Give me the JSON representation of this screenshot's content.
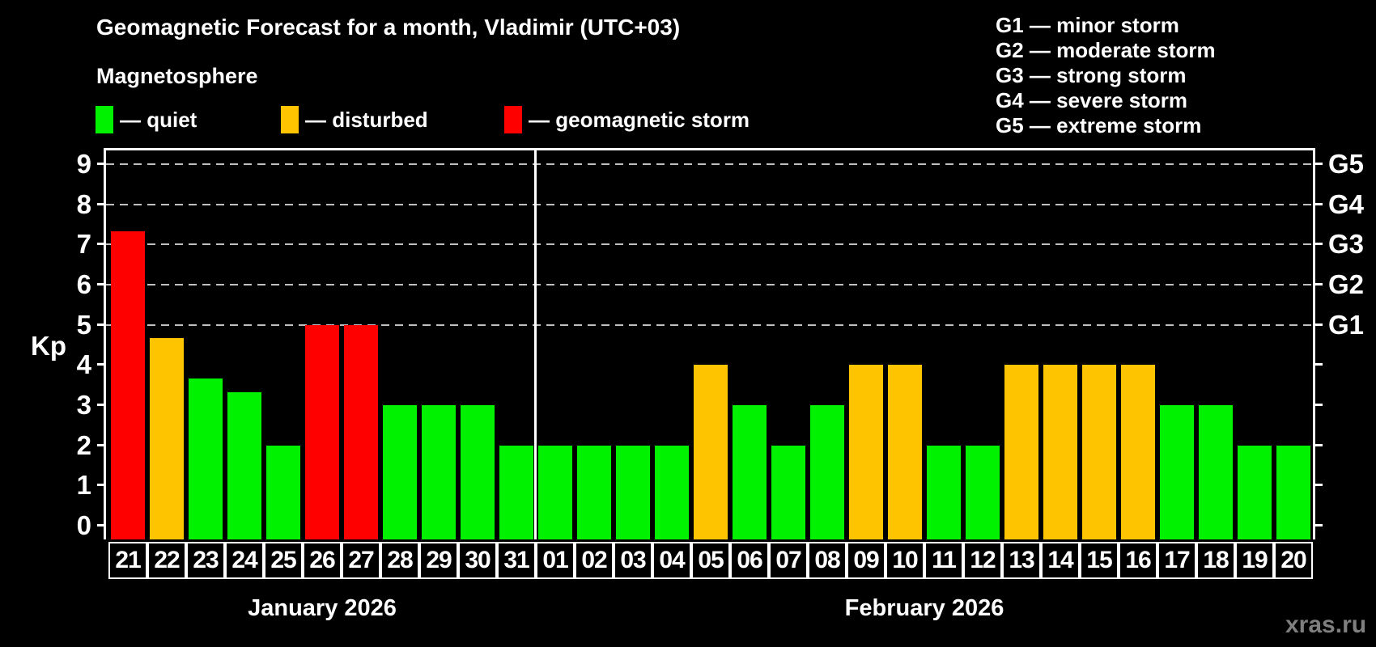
{
  "title": "Geomagnetic Forecast for a month, Vladimir (UTC+03)",
  "subtitle": "Magnetosphere",
  "legend": {
    "items": [
      {
        "label": "— quiet",
        "color": "#00f200",
        "status": "quiet"
      },
      {
        "label": "— disturbed",
        "color": "#ffc400",
        "status": "disturbed"
      },
      {
        "label": "— geomagnetic storm",
        "color": "#ff0000",
        "status": "storm"
      }
    ]
  },
  "g_scale": {
    "items": [
      "G1 — minor storm",
      "G2 — moderate storm",
      "G3 — strong storm",
      "G4 — severe storm",
      "G5 — extreme storm"
    ]
  },
  "watermark": "xras.ru",
  "chart_data": {
    "type": "bar",
    "ylabel": "Kp",
    "ylim": [
      0,
      9
    ],
    "yticks": [
      0,
      1,
      2,
      3,
      4,
      5,
      6,
      7,
      8,
      9
    ],
    "gridlines_at": [
      5,
      6,
      7,
      8,
      9
    ],
    "grid_on": true,
    "right_axis": {
      "labels": [
        {
          "kp": 5,
          "text": "G1"
        },
        {
          "kp": 6,
          "text": "G2"
        },
        {
          "kp": 7,
          "text": "G3"
        },
        {
          "kp": 8,
          "text": "G4"
        },
        {
          "kp": 9,
          "text": "G5"
        }
      ]
    },
    "status_colors": {
      "quiet": "#00f200",
      "disturbed": "#ffc400",
      "storm": "#ff0000"
    },
    "months": [
      {
        "label": "January 2026",
        "days": [
          {
            "day": "21",
            "kp": 7.33,
            "status": "storm"
          },
          {
            "day": "22",
            "kp": 4.67,
            "status": "disturbed"
          },
          {
            "day": "23",
            "kp": 3.67,
            "status": "quiet"
          },
          {
            "day": "24",
            "kp": 3.33,
            "status": "quiet"
          },
          {
            "day": "25",
            "kp": 2,
            "status": "quiet"
          },
          {
            "day": "26",
            "kp": 5,
            "status": "storm"
          },
          {
            "day": "27",
            "kp": 5,
            "status": "storm"
          },
          {
            "day": "28",
            "kp": 3,
            "status": "quiet"
          },
          {
            "day": "29",
            "kp": 3,
            "status": "quiet"
          },
          {
            "day": "30",
            "kp": 3,
            "status": "quiet"
          },
          {
            "day": "31",
            "kp": 2,
            "status": "quiet"
          }
        ]
      },
      {
        "label": "February 2026",
        "days": [
          {
            "day": "01",
            "kp": 2,
            "status": "quiet"
          },
          {
            "day": "02",
            "kp": 2,
            "status": "quiet"
          },
          {
            "day": "03",
            "kp": 2,
            "status": "quiet"
          },
          {
            "day": "04",
            "kp": 2,
            "status": "quiet"
          },
          {
            "day": "05",
            "kp": 4,
            "status": "disturbed"
          },
          {
            "day": "06",
            "kp": 3,
            "status": "quiet"
          },
          {
            "day": "07",
            "kp": 2,
            "status": "quiet"
          },
          {
            "day": "08",
            "kp": 3,
            "status": "quiet"
          },
          {
            "day": "09",
            "kp": 4,
            "status": "disturbed"
          },
          {
            "day": "10",
            "kp": 4,
            "status": "disturbed"
          },
          {
            "day": "11",
            "kp": 2,
            "status": "quiet"
          },
          {
            "day": "12",
            "kp": 2,
            "status": "quiet"
          },
          {
            "day": "13",
            "kp": 4,
            "status": "disturbed"
          },
          {
            "day": "14",
            "kp": 4,
            "status": "disturbed"
          },
          {
            "day": "15",
            "kp": 4,
            "status": "disturbed"
          },
          {
            "day": "16",
            "kp": 4,
            "status": "disturbed"
          },
          {
            "day": "17",
            "kp": 3,
            "status": "quiet"
          },
          {
            "day": "18",
            "kp": 3,
            "status": "quiet"
          },
          {
            "day": "19",
            "kp": 2,
            "status": "quiet"
          },
          {
            "day": "20",
            "kp": 2,
            "status": "quiet"
          }
        ]
      }
    ]
  }
}
